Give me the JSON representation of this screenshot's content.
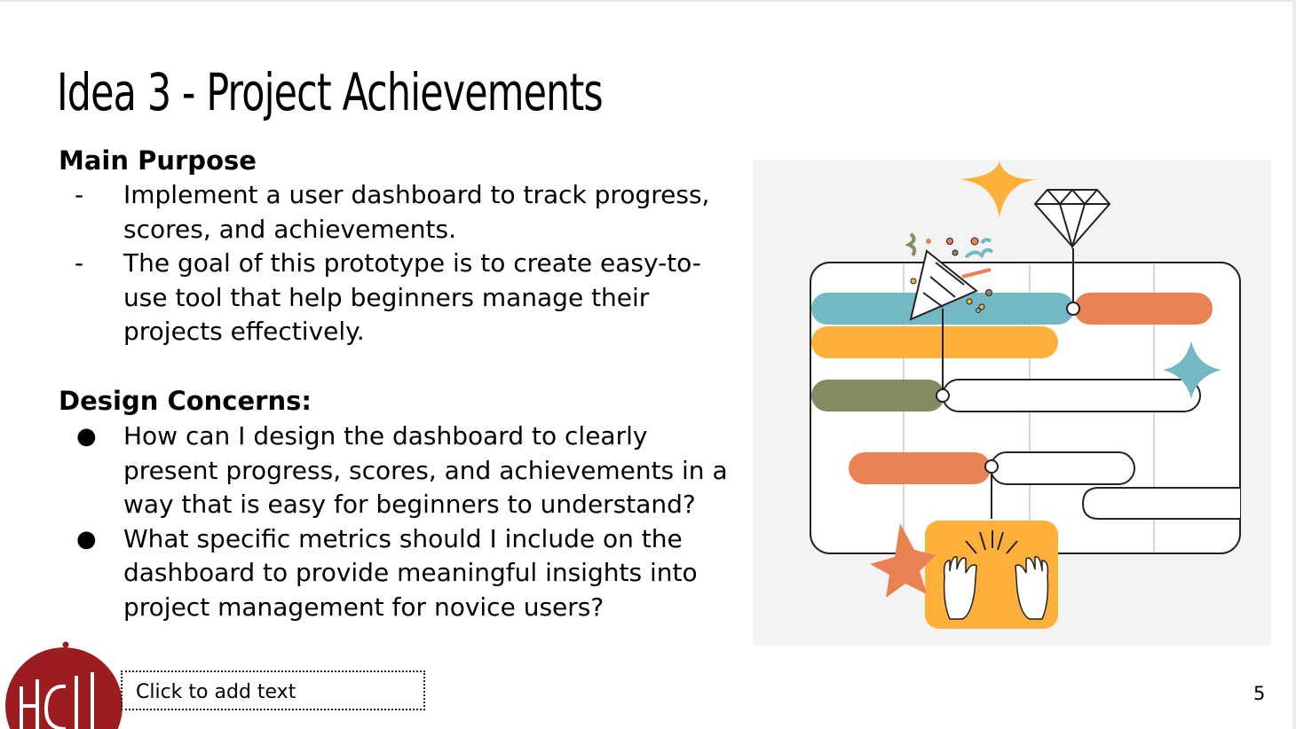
{
  "slide": {
    "title": "Idea 3 - Project Achievements",
    "main_purpose": {
      "heading": "Main Purpose",
      "items": [
        {
          "marker": "-",
          "text": "Implement a user dashboard to track progress, scores, and achievements."
        },
        {
          "marker": "-",
          "text": "The goal of this prototype is to create easy-to-use tool that help beginners manage their projects effectively."
        }
      ]
    },
    "design_concerns": {
      "heading": "Design Concerns:",
      "items": [
        {
          "marker": "●",
          "text": "How can I design the dashboard to clearly present progress, scores, and achievements in a way that is easy for beginners to understand?"
        },
        {
          "marker": "●",
          "text": "What specific metrics should I include on the dashboard to provide meaningful insights into project management for novice users?"
        }
      ]
    },
    "placeholder_text": "Click to add text",
    "page_number": "5",
    "logo_text": "HCII"
  },
  "colors": {
    "teal": "#72b8c5",
    "orange": "#e98152",
    "yellow": "#fdb13b",
    "olive": "#858b60",
    "logo_red": "#9b1d20",
    "illustration_bg": "#f2f3f2"
  }
}
